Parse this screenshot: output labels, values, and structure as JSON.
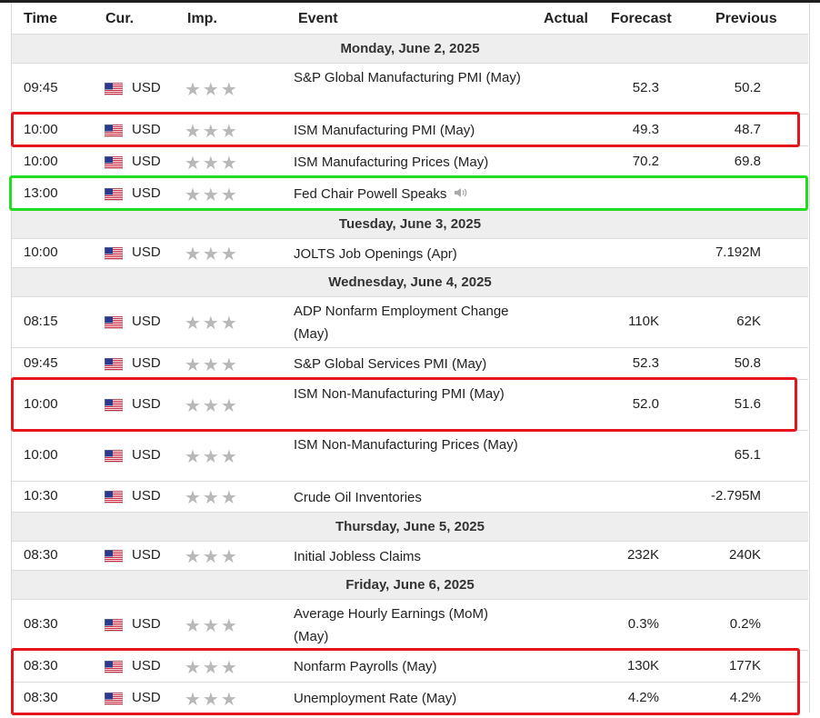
{
  "columns": {
    "time": "Time",
    "currency": "Cur.",
    "importance": "Imp.",
    "event": "Event",
    "actual": "Actual",
    "forecast": "Forecast",
    "previous": "Previous"
  },
  "colors": {
    "highlight_red": "#e8141c",
    "highlight_green": "#22dd22"
  },
  "days": {
    "mon": "Monday, June 2, 2025",
    "tue": "Tuesday, June 3, 2025",
    "wed": "Wednesday, June 4, 2025",
    "thu": "Thursday, June 5, 2025",
    "fri": "Friday, June 6, 2025"
  },
  "events": [
    {
      "time": "09:45",
      "currency": "USD",
      "event": "S&P Global Manufacturing PMI (May)",
      "forecast": "52.3",
      "previous": "50.2"
    },
    {
      "time": "10:00",
      "currency": "USD",
      "event": "ISM Manufacturing PMI (May)",
      "forecast": "49.3",
      "previous": "48.7"
    },
    {
      "time": "10:00",
      "currency": "USD",
      "event": "ISM Manufacturing Prices (May)",
      "forecast": "70.2",
      "previous": "69.8"
    },
    {
      "time": "13:00",
      "currency": "USD",
      "event": "Fed Chair Powell Speaks",
      "forecast": "",
      "previous": ""
    },
    {
      "time": "10:00",
      "currency": "USD",
      "event": "JOLTS Job Openings (Apr)",
      "forecast": "",
      "previous": "7.192M"
    },
    {
      "time": "08:15",
      "currency": "USD",
      "event": "ADP Nonfarm Employment Change (May)",
      "forecast": "110K",
      "previous": "62K"
    },
    {
      "time": "09:45",
      "currency": "USD",
      "event": "S&P Global Services PMI (May)",
      "forecast": "52.3",
      "previous": "50.8"
    },
    {
      "time": "10:00",
      "currency": "USD",
      "event": "ISM Non-Manufacturing PMI (May)",
      "forecast": "52.0",
      "previous": "51.6"
    },
    {
      "time": "10:00",
      "currency": "USD",
      "event": "ISM Non-Manufacturing Prices (May)",
      "forecast": "",
      "previous": "65.1"
    },
    {
      "time": "10:30",
      "currency": "USD",
      "event": "Crude Oil Inventories",
      "forecast": "",
      "previous": "-2.795M"
    },
    {
      "time": "08:30",
      "currency": "USD",
      "event": "Initial Jobless Claims",
      "forecast": "232K",
      "previous": "240K"
    },
    {
      "time": "08:30",
      "currency": "USD",
      "event": "Average Hourly Earnings (MoM) (May)",
      "forecast": "0.3%",
      "previous": "0.2%"
    },
    {
      "time": "08:30",
      "currency": "USD",
      "event": "Nonfarm Payrolls (May)",
      "forecast": "130K",
      "previous": "177K"
    },
    {
      "time": "08:30",
      "currency": "USD",
      "event": "Unemployment Rate (May)",
      "forecast": "4.2%",
      "previous": "4.2%"
    }
  ]
}
